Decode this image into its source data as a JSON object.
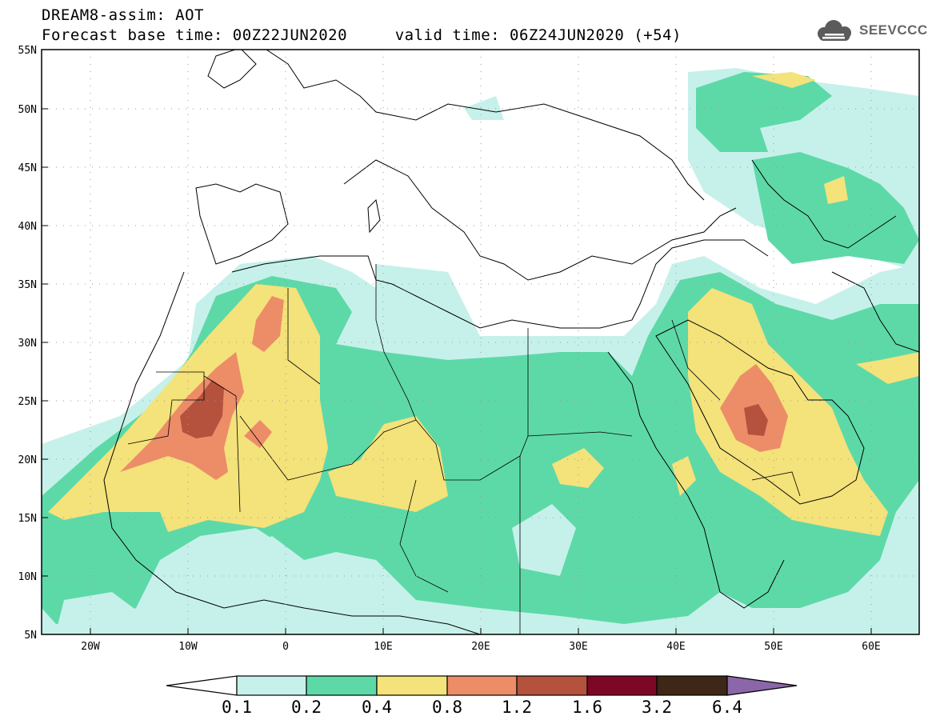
{
  "header": {
    "title_line1": "DREAM8-assim: AOT",
    "title_line2": "Forecast base time: 00Z22JUN2020     valid time: 06Z24JUN2020 (+54)",
    "logo_text": "SEEVCCC",
    "logo_icon": "cloud-icon"
  },
  "map": {
    "projection": "lat-lon",
    "lon_range": [
      -25,
      65
    ],
    "lat_range": [
      5,
      55
    ],
    "lat_labels": [
      "5N",
      "10N",
      "15N",
      "20N",
      "25N",
      "30N",
      "35N",
      "40N",
      "45N",
      "50N",
      "55N"
    ],
    "lon_labels": [
      "20W",
      "10W",
      "0",
      "10E",
      "20E",
      "30E",
      "40E",
      "50E",
      "60E"
    ],
    "grid": "dotted"
  },
  "legend": {
    "labels": [
      "0.1",
      "0.2",
      "0.4",
      "0.8",
      "1.2",
      "1.6",
      "3.2",
      "6.4"
    ],
    "colors": [
      "#ffffff",
      "#c6f1ea",
      "#5dd9a8",
      "#f4e27a",
      "#ec8d68",
      "#b5523e",
      "#7d0826",
      "#3e2716",
      "#8b66a8"
    ]
  }
}
